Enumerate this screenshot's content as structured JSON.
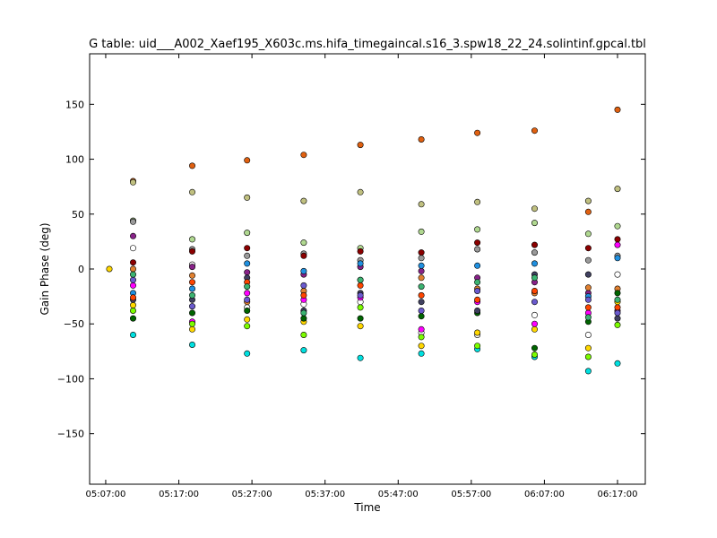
{
  "chart_data": {
    "type": "scatter",
    "title": "G table: uid___A002_Xaef195_X603c.ms.hifa_timegaincal.s16_3.spw18_22_24.solintinf.gpcal.tbl",
    "xlabel": "Time",
    "ylabel": "Gain Phase (deg)",
    "xlim": [
      "05:04:48",
      "06:20:48"
    ],
    "ylim": [
      -196,
      196
    ],
    "grid": false,
    "x_ticks": [
      "05:07:00",
      "05:17:00",
      "05:27:00",
      "05:37:00",
      "05:47:00",
      "05:57:00",
      "06:07:00",
      "06:17:00"
    ],
    "y_ticks": [
      -150,
      -100,
      -50,
      0,
      50,
      100,
      150
    ],
    "y_tick_labels": [
      "−150",
      "−100",
      "−50",
      "0",
      "50",
      "100",
      "150"
    ],
    "times": [
      "05:07:30",
      "05:10:45",
      "05:18:50",
      "05:26:20",
      "05:34:05",
      "05:41:50",
      "05:50:10",
      "05:57:50",
      "06:05:40",
      "06:13:00",
      "06:17:00"
    ],
    "series": [
      {
        "color": "#e06010",
        "values": [
          null,
          80,
          94,
          99,
          104,
          113,
          118,
          124,
          126,
          52,
          145
        ]
      },
      {
        "color": "#c0c080",
        "values": [
          null,
          79,
          70,
          65,
          62,
          70,
          59,
          61,
          55,
          62,
          73
        ]
      },
      {
        "color": "#b0d890",
        "values": [
          null,
          44,
          27,
          33,
          24,
          19,
          34,
          36,
          42,
          32,
          39
        ]
      },
      {
        "color": "#9a9a9a",
        "values": [
          null,
          43,
          18,
          12,
          14,
          8,
          10,
          18,
          15,
          8,
          12
        ]
      },
      {
        "color": "#ffffff",
        "values": [
          null,
          19,
          4,
          -35,
          -32,
          -30,
          -58,
          -60,
          -42,
          -60,
          -5
        ]
      },
      {
        "color": "#882288",
        "values": [
          null,
          30,
          2,
          -3,
          -5,
          2,
          -2,
          -8,
          -12,
          -22,
          -38
        ]
      },
      {
        "color": "#8b0000",
        "values": [
          null,
          6,
          16,
          19,
          12,
          16,
          15,
          24,
          22,
          19,
          27
        ]
      },
      {
        "color": "#e08030",
        "values": [
          null,
          0,
          -6,
          -30,
          -20,
          -10,
          -8,
          -18,
          -22,
          -17,
          -18
        ]
      },
      {
        "color": "#ffd700",
        "values": [
          0,
          -33,
          -55,
          -46,
          -48,
          -52,
          -70,
          -58,
          -55,
          -72,
          -30
        ]
      },
      {
        "color": "#00e0e0",
        "values": [
          null,
          -60,
          -69,
          -77,
          -74,
          -81,
          -77,
          -73,
          -80,
          -93,
          -86
        ]
      },
      {
        "color": "#ff00ff",
        "values": [
          null,
          -15,
          -48,
          -22,
          -28,
          -26,
          -55,
          -30,
          -50,
          -40,
          22
        ]
      },
      {
        "color": "#006400",
        "values": [
          null,
          -45,
          -40,
          -38,
          -45,
          -45,
          -43,
          -40,
          -72,
          -48,
          -22
        ]
      },
      {
        "color": "#7cfc00",
        "values": [
          null,
          -38,
          -50,
          -52,
          -60,
          -35,
          -62,
          -70,
          -78,
          -80,
          -51
        ]
      },
      {
        "color": "#2090e0",
        "values": [
          null,
          -22,
          -18,
          5,
          -2,
          5,
          3,
          3,
          5,
          -25,
          10
        ]
      },
      {
        "color": "#404060",
        "values": [
          null,
          -28,
          -28,
          -8,
          -38,
          -22,
          -30,
          -38,
          -5,
          -5,
          -45
        ]
      },
      {
        "color": "#ff4500",
        "values": [
          null,
          -26,
          -12,
          -12,
          -24,
          -15,
          -24,
          -28,
          -20,
          -35,
          -35
        ]
      },
      {
        "color": "#6a5acd",
        "values": [
          null,
          -10,
          -34,
          -28,
          -15,
          -24,
          -38,
          -20,
          -30,
          -28,
          -40
        ]
      },
      {
        "color": "#3cb371",
        "values": [
          null,
          -5,
          -24,
          -16,
          -40,
          -10,
          -16,
          -12,
          -8,
          -44,
          -28
        ]
      }
    ]
  }
}
